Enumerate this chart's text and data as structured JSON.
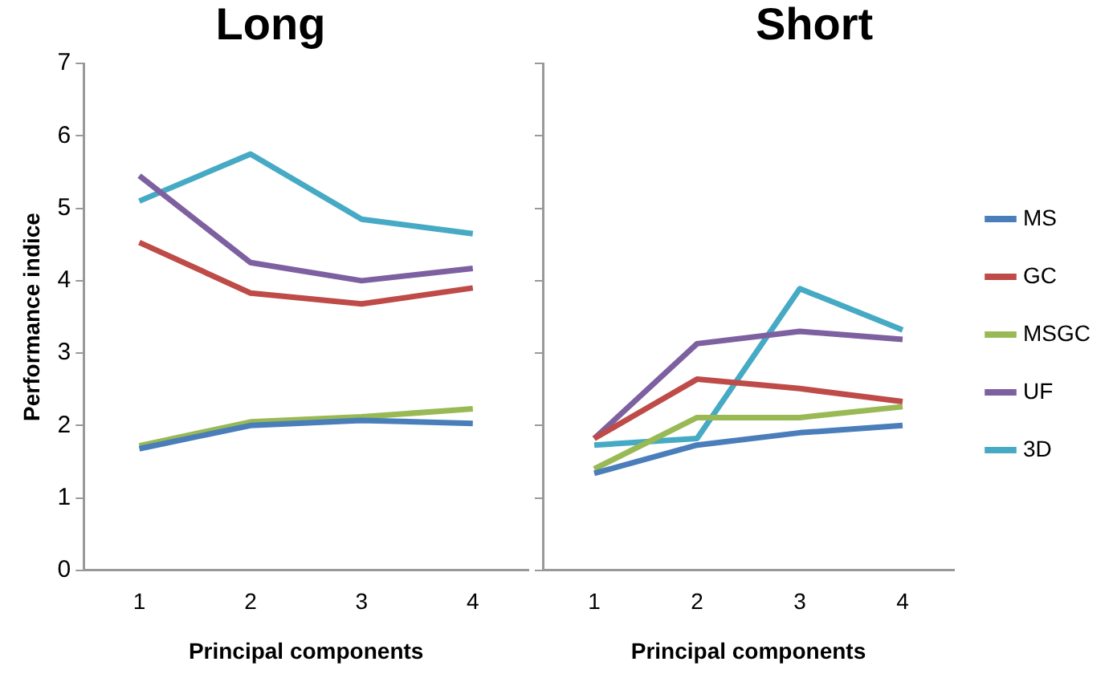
{
  "chart_data": [
    {
      "type": "line",
      "title": "Long",
      "xlabel": "Principal components",
      "ylabel": "Performance indice",
      "categories": [
        "1",
        "2",
        "3",
        "4"
      ],
      "ylim": [
        0,
        7
      ],
      "yticks": [
        0,
        1,
        2,
        3,
        4,
        5,
        6,
        7
      ],
      "grid": false,
      "legend": false,
      "marker": "none",
      "series": [
        {
          "color": "#4a7ebb",
          "values": [
            1.68,
            2.0,
            2.07,
            2.03
          ]
        },
        {
          "color": "#be4b48",
          "values": [
            4.53,
            3.83,
            3.68,
            3.9
          ]
        },
        {
          "color": "#98b954",
          "values": [
            1.72,
            2.05,
            2.12,
            2.23
          ]
        },
        {
          "color": "#7d60a0",
          "values": [
            5.45,
            4.25,
            4.0,
            4.17
          ]
        },
        {
          "color": "#46aac5",
          "values": [
            5.1,
            5.75,
            4.85,
            4.65
          ]
        }
      ]
    },
    {
      "type": "line",
      "title": "Short",
      "xlabel": "Principal components",
      "categories": [
        "1",
        "2",
        "3",
        "4"
      ],
      "ylim": [
        0,
        7
      ],
      "yticks": [
        0,
        1,
        2,
        3,
        4,
        5,
        6,
        7
      ],
      "tick_labels": "x",
      "grid": false,
      "legend": "right",
      "marker": "none",
      "series": [
        {
          "name": "MS",
          "color": "#4a7ebb",
          "values": [
            1.34,
            1.73,
            1.9,
            2.0
          ]
        },
        {
          "name": "GC",
          "color": "#be4b48",
          "values": [
            1.82,
            2.64,
            2.51,
            2.33
          ]
        },
        {
          "name": "MSGC",
          "color": "#98b954",
          "values": [
            1.4,
            2.11,
            2.11,
            2.26
          ]
        },
        {
          "name": "UF",
          "color": "#7d60a0",
          "values": [
            1.82,
            3.13,
            3.3,
            3.19
          ]
        },
        {
          "name": "3D",
          "color": "#46aac5",
          "values": [
            1.73,
            1.82,
            3.89,
            3.32
          ]
        }
      ]
    }
  ]
}
